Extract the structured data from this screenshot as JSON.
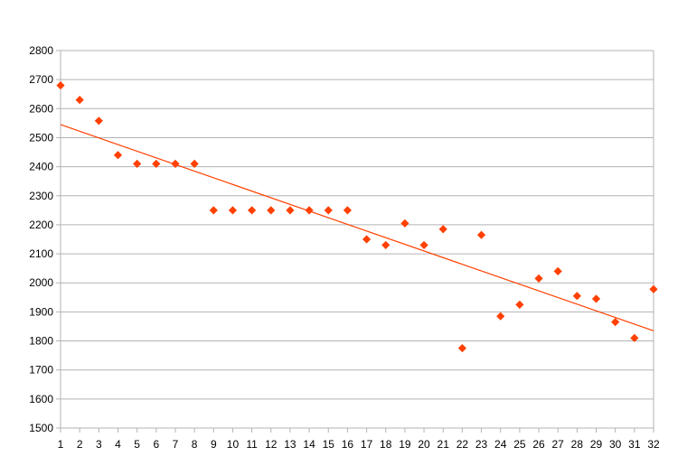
{
  "chart_data": {
    "type": "scatter",
    "title": "",
    "xlabel": "",
    "ylabel": "",
    "xlim": [
      1,
      32
    ],
    "ylim": [
      1500,
      2800
    ],
    "yticks": [
      1500,
      1600,
      1700,
      1800,
      1900,
      2000,
      2100,
      2200,
      2300,
      2400,
      2500,
      2600,
      2700,
      2800
    ],
    "xticks": [
      1,
      2,
      3,
      4,
      5,
      6,
      7,
      8,
      9,
      10,
      11,
      12,
      13,
      14,
      15,
      16,
      17,
      18,
      19,
      20,
      21,
      22,
      23,
      24,
      25,
      26,
      27,
      28,
      29,
      30,
      31,
      32
    ],
    "grid": true,
    "legend": "none",
    "point_color": "#ff4000",
    "trendline_color": "#ff4000",
    "gridline_color": "#b3b3b3",
    "series": [
      {
        "x": [
          1,
          2,
          3,
          4,
          5,
          6,
          7,
          8,
          9,
          10,
          11,
          12,
          13,
          14,
          15,
          16,
          17,
          18,
          19,
          20,
          21,
          22,
          23,
          24,
          25,
          26,
          27,
          28,
          29,
          30,
          31,
          32
        ],
        "y": [
          2680,
          2630,
          2558,
          2440,
          2410,
          2410,
          2410,
          2410,
          2250,
          2250,
          2250,
          2250,
          2250,
          2250,
          2250,
          2250,
          2150,
          2130,
          2205,
          2130,
          2185,
          1775,
          2165,
          1885,
          1925,
          2015,
          2040,
          1955,
          1945,
          1865,
          1810,
          1978
        ],
        "marker": "diamond"
      }
    ],
    "trendline": {
      "type": "linear",
      "start": [
        1,
        2545
      ],
      "end": [
        32,
        1835
      ]
    }
  }
}
